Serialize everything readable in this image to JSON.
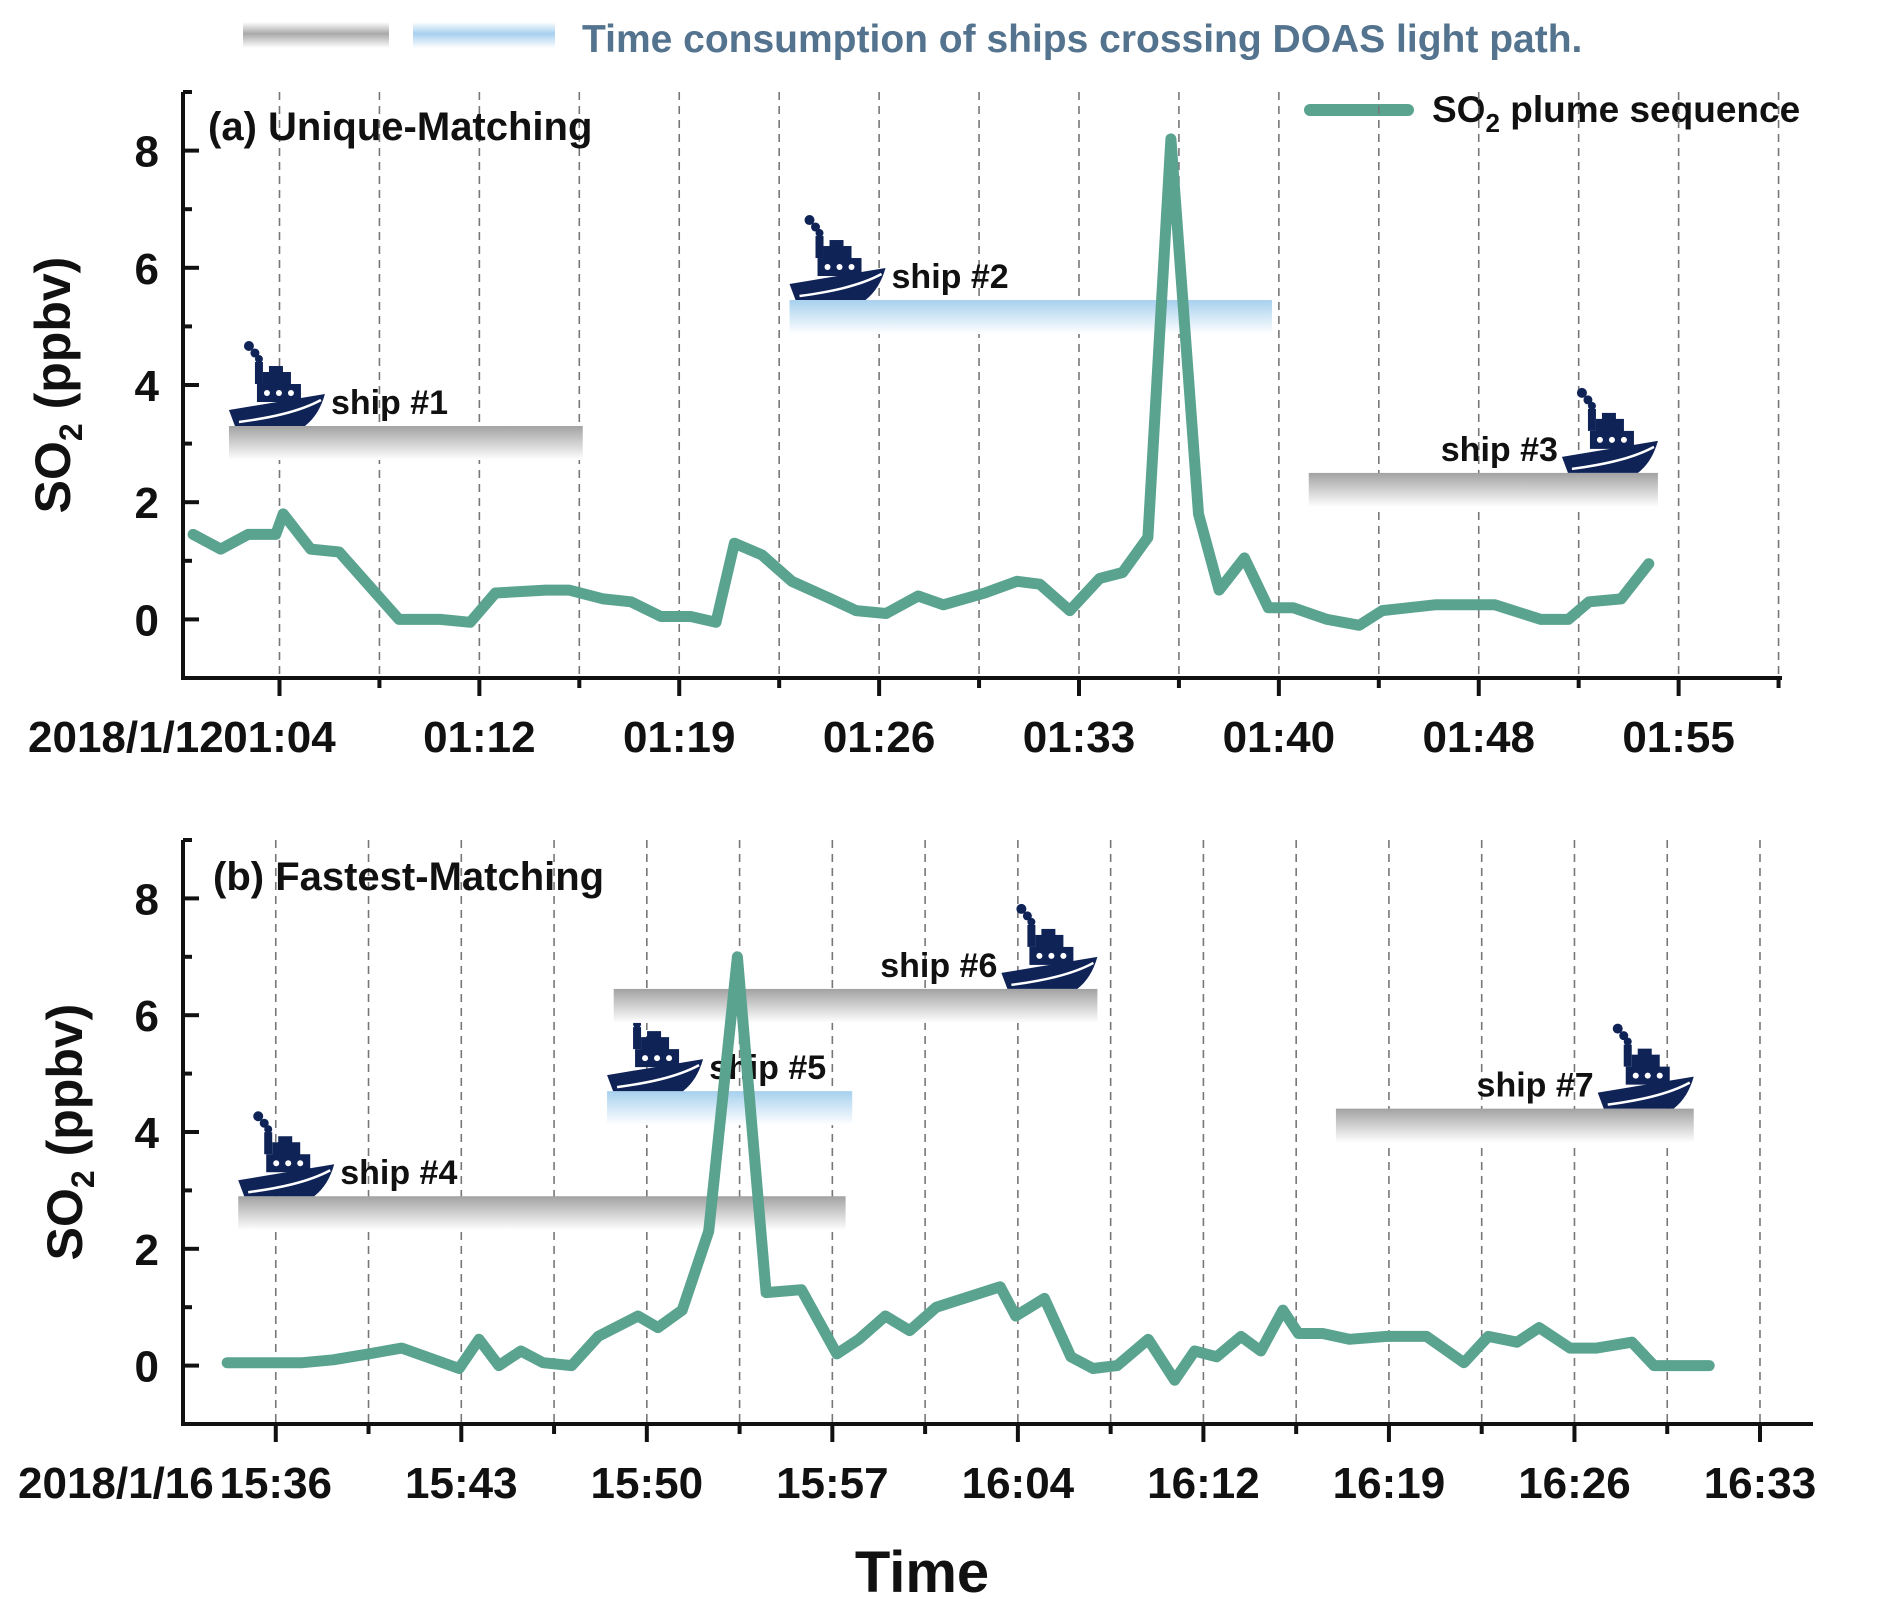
{
  "legend": {
    "band_text": "Time consumption of ships crossing DOAS light path.",
    "series_text": "SO",
    "series_sub": "2",
    "series_rest": " plume sequence",
    "line_color": "#5aa38f",
    "gray_band_color": "#a9a9a9",
    "blue_band_color": "#a7d0ee",
    "ship_color": "#0f2357"
  },
  "xlabel": "Time",
  "chart_data": [
    {
      "type": "line",
      "title": "(a) Unique-Matching",
      "ylabel": {
        "main": "SO",
        "sub": "2",
        "rest": " (ppbv)"
      },
      "date_label": "2018/1/12",
      "xlim": [
        "01:00:30",
        "01:58:30"
      ],
      "ylim": [
        -1,
        9
      ],
      "yticks": [
        0,
        2,
        4,
        6,
        8
      ],
      "xticks": [
        {
          "label": "01:04",
          "t": "01:04:00"
        },
        {
          "label": "01:12",
          "t": "01:11:15"
        },
        {
          "label": "01:19",
          "t": "01:18:30"
        },
        {
          "label": "01:26",
          "t": "01:25:45"
        },
        {
          "label": "01:33",
          "t": "01:33:00"
        },
        {
          "label": "01:40",
          "t": "01:40:15"
        },
        {
          "label": "01:48",
          "t": "01:47:30"
        },
        {
          "label": "01:55",
          "t": "01:54:45"
        }
      ],
      "series": [
        {
          "x": [
            "01:00:52",
            "01:01:52",
            "01:02:52",
            "01:03:52",
            "01:04:08",
            "01:05:08",
            "01:06:10",
            "01:08:20",
            "01:09:50",
            "01:10:55",
            "01:11:50",
            "01:13:40",
            "01:14:30",
            "01:15:45",
            "01:16:45",
            "01:17:50",
            "01:18:55",
            "01:19:50",
            "01:20:30",
            "01:21:30",
            "01:22:35",
            "01:24:00",
            "01:24:55",
            "01:26:00",
            "01:27:10",
            "01:28:05",
            "01:29:35",
            "01:30:45",
            "01:31:35",
            "01:32:40",
            "01:33:45",
            "01:34:35",
            "01:35:30",
            "01:36:20",
            "01:37:20",
            "01:38:05",
            "01:39:00",
            "01:39:52",
            "01:40:46",
            "01:42:00",
            "01:43:10",
            "01:44:00",
            "01:45:55",
            "01:48:05",
            "01:49:45",
            "01:50:45",
            "01:51:30",
            "01:52:40",
            "01:53:40"
          ],
          "y": [
            1.45,
            1.2,
            1.45,
            1.45,
            1.8,
            1.2,
            1.15,
            0.0,
            0.0,
            -0.05,
            0.45,
            0.5,
            0.5,
            0.35,
            0.3,
            0.05,
            0.05,
            -0.05,
            1.3,
            1.1,
            0.65,
            0.35,
            0.15,
            0.1,
            0.4,
            0.25,
            0.45,
            0.65,
            0.6,
            0.15,
            0.7,
            0.8,
            1.4,
            8.2,
            1.8,
            0.5,
            1.05,
            0.2,
            0.2,
            0.0,
            -0.1,
            0.15,
            0.25,
            0.25,
            0.0,
            0.0,
            0.3,
            0.35,
            0.95
          ]
        }
      ],
      "ships": [
        {
          "label": "ship #1",
          "start": "01:02:10",
          "end": "01:15:00",
          "y": 3.3,
          "band": "gray",
          "label_side": "right"
        },
        {
          "label": "ship #2",
          "start": "01:22:30",
          "end": "01:40:00",
          "y": 5.45,
          "band": "blue",
          "label_side": "right"
        },
        {
          "label": "ship #3",
          "start": "01:41:20",
          "end": "01:54:00",
          "y": 2.5,
          "band": "gray",
          "label_side": "left"
        }
      ]
    },
    {
      "type": "line",
      "title": "(b) Fastest-Matching",
      "ylabel": {
        "main": "SO",
        "sub": "2",
        "rest": " (ppbv)"
      },
      "date_label": "2018/1/16",
      "xlim": [
        "15:32:30",
        "16:34:00"
      ],
      "ylim": [
        -1,
        9
      ],
      "yticks": [
        0,
        2,
        4,
        6,
        8
      ],
      "xticks": [
        {
          "label": "15:36",
          "t": "15:36:00"
        },
        {
          "label": "15:43",
          "t": "15:43:00"
        },
        {
          "label": "15:50",
          "t": "15:50:00"
        },
        {
          "label": "15:57",
          "t": "15:57:00"
        },
        {
          "label": "16:04",
          "t": "16:04:00"
        },
        {
          "label": "16:12",
          "t": "16:11:00"
        },
        {
          "label": "16:19",
          "t": "16:18:00"
        },
        {
          "label": "16:26",
          "t": "16:25:00"
        },
        {
          "label": "16:33",
          "t": "16:32:00"
        }
      ],
      "series": [
        {
          "x": [
            "15:34:10",
            "15:37:00",
            "15:38:10",
            "15:39:30",
            "15:40:45",
            "15:42:55",
            "15:43:40",
            "15:44:25",
            "15:45:15",
            "15:46:05",
            "15:47:10",
            "15:48:10",
            "15:49:40",
            "15:50:25",
            "15:51:20",
            "15:52:20",
            "15:53:25",
            "15:54:30",
            "15:55:50",
            "15:57:10",
            "15:58:00",
            "15:59:00",
            "15:59:55",
            "16:00:55",
            "16:03:20",
            "16:03:55",
            "16:05:00",
            "16:06:00",
            "16:06:50",
            "16:07:45",
            "16:08:55",
            "16:09:55",
            "16:10:40",
            "16:11:30",
            "16:12:25",
            "16:13:10",
            "16:14:00",
            "16:14:35",
            "16:15:30",
            "16:16:30",
            "16:17:55",
            "16:19:25",
            "16:20:50",
            "16:21:45",
            "16:22:50",
            "16:23:40",
            "16:24:50",
            "16:25:50",
            "16:27:10",
            "16:28:00",
            "16:29:10",
            "16:30:05"
          ],
          "y": [
            0.05,
            0.05,
            0.1,
            0.2,
            0.3,
            -0.05,
            0.45,
            0.0,
            0.25,
            0.05,
            0.0,
            0.5,
            0.85,
            0.65,
            0.95,
            2.3,
            7.0,
            1.25,
            1.3,
            0.2,
            0.45,
            0.85,
            0.6,
            1.0,
            1.35,
            0.85,
            1.15,
            0.15,
            -0.05,
            0.0,
            0.45,
            -0.25,
            0.25,
            0.15,
            0.5,
            0.25,
            0.95,
            0.55,
            0.55,
            0.45,
            0.5,
            0.5,
            0.05,
            0.5,
            0.4,
            0.65,
            0.3,
            0.3,
            0.4,
            0.0,
            0.0,
            0.0
          ]
        }
      ],
      "ships": [
        {
          "label": "ship #4",
          "start": "15:34:35",
          "end": "15:57:30",
          "y": 2.9,
          "band": "gray",
          "label_side": "right"
        },
        {
          "label": "ship #5",
          "start": "15:48:30",
          "end": "15:57:45",
          "y": 4.7,
          "band": "blue",
          "label_side": "right"
        },
        {
          "label": "ship #6",
          "start": "15:48:45",
          "end": "16:07:00",
          "y": 6.45,
          "band": "gray",
          "label_side": "left"
        },
        {
          "label": "ship #7",
          "start": "16:16:00",
          "end": "16:29:30",
          "y": 4.4,
          "band": "gray",
          "label_side": "left"
        }
      ]
    }
  ]
}
